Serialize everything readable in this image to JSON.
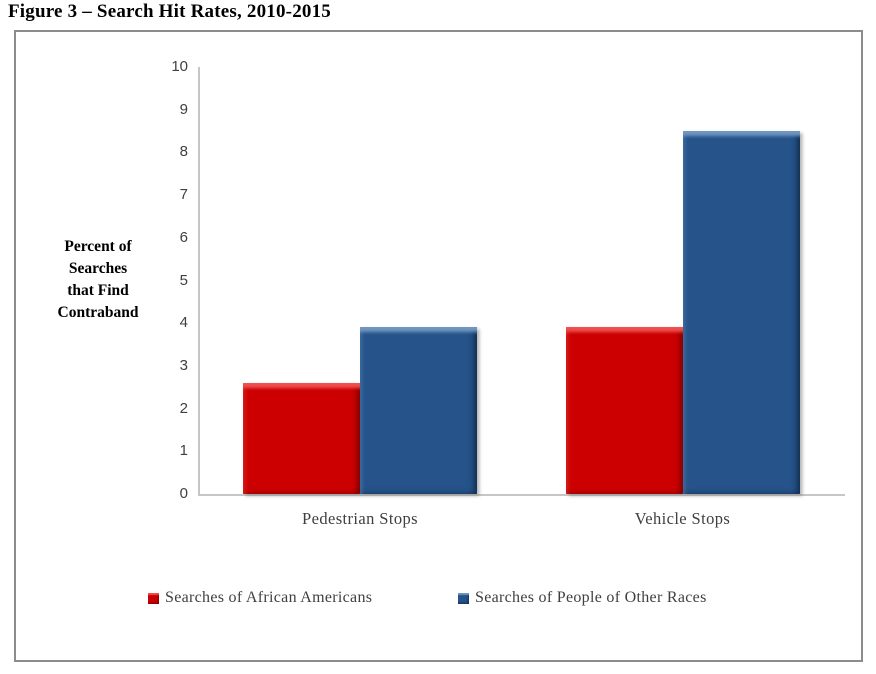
{
  "figure": {
    "title": "Figure 3 – Search Hit Rates, 2010-2015"
  },
  "chart_data": {
    "type": "bar",
    "title": "Figure 3 – Search Hit Rates, 2010-2015",
    "categories": [
      "Pedestrian Stops",
      "Vehicle Stops"
    ],
    "series": [
      {
        "name": "Searches of African Americans",
        "values": [
          2.6,
          3.9
        ],
        "color": "#CC0000",
        "bevel_light": "#F05050",
        "bevel_dark": "#7E0000"
      },
      {
        "name": "Searches of People of Other Races",
        "values": [
          3.9,
          8.5
        ],
        "color": "#25538A",
        "bevel_light": "#6F97C1",
        "bevel_dark": "#142E4F"
      }
    ],
    "ylabel_lines": [
      "Percent of",
      "Searches",
      "that Find",
      "Contraband"
    ],
    "ylim": [
      0,
      10
    ],
    "ytick_step": 1,
    "yticks": [
      0,
      1,
      2,
      3,
      4,
      5,
      6,
      7,
      8,
      9,
      10
    ],
    "legend_position": "bottom",
    "grid": false
  },
  "colors": {
    "axis_line": "#C6C6C6",
    "frame_border": "#8C8C8C",
    "tick_text": "#404040",
    "category_text": "#3F3F3F",
    "legend_text": "#3F3F3F",
    "title_text": "#000000"
  }
}
